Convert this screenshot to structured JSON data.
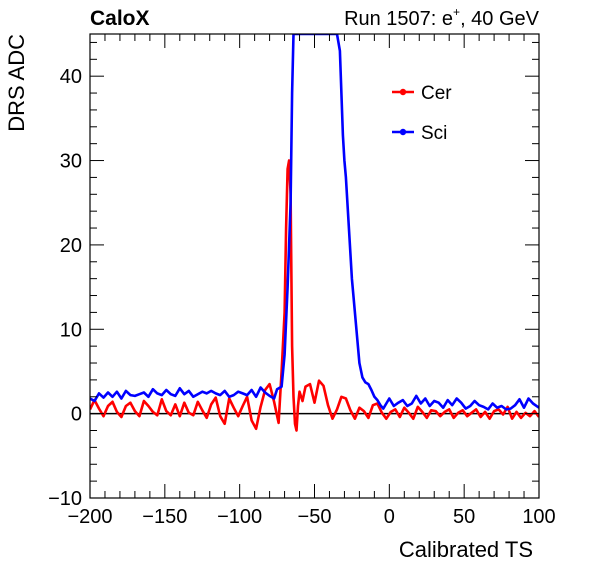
{
  "header": {
    "experiment": "CaloX",
    "run_prefix": "Run 1507: e",
    "run_superscript": "+",
    "run_suffix": ", 40 GeV"
  },
  "chart_data": {
    "type": "line",
    "title": "",
    "xlabel": "Calibrated TS",
    "ylabel": "DRS ADC",
    "xlim": [
      -200,
      100
    ],
    "ylim": [
      -10,
      45
    ],
    "x_ticks": [
      -200,
      -150,
      -100,
      -50,
      0,
      50,
      100
    ],
    "x_tick_labels": [
      "−200",
      "−150",
      "−100",
      "−50",
      "0",
      "50",
      "100"
    ],
    "y_ticks": [
      -10,
      0,
      10,
      20,
      30,
      40
    ],
    "y_tick_labels": [
      "−10",
      "0",
      "10",
      "20",
      "30",
      "40"
    ],
    "baseline_y": 0,
    "grid": false,
    "legend_position": "top-right",
    "series": [
      {
        "name": "Cer",
        "color": "#ff0000",
        "x": [
          -200,
          -197,
          -194,
          -191,
          -188,
          -185,
          -182,
          -179,
          -176,
          -173,
          -170,
          -167,
          -164,
          -161,
          -158,
          -155,
          -152,
          -149,
          -146,
          -143,
          -140,
          -137,
          -134,
          -131,
          -128,
          -125,
          -122,
          -119,
          -116,
          -113,
          -110,
          -107,
          -104,
          -101,
          -98,
          -95,
          -92,
          -89,
          -86,
          -83,
          -80,
          -77,
          -74,
          -72,
          -70,
          -69,
          -68,
          -67,
          -66,
          -65,
          -64,
          -63,
          -62,
          -61,
          -60,
          -58,
          -56,
          -53,
          -50,
          -47,
          -44,
          -41,
          -38,
          -35,
          -32,
          -29,
          -26,
          -23,
          -20,
          -17,
          -14,
          -11,
          -8,
          -5,
          -2,
          1,
          4,
          7,
          10,
          13,
          16,
          19,
          22,
          25,
          28,
          31,
          34,
          37,
          40,
          43,
          46,
          49,
          52,
          55,
          58,
          61,
          64,
          67,
          70,
          73,
          76,
          79,
          82,
          85,
          88,
          91,
          94,
          97,
          100
        ],
        "y": [
          0.5,
          1.6,
          0.6,
          -0.3,
          0.9,
          1.4,
          0.2,
          -0.4,
          0.9,
          1.3,
          0.3,
          -0.3,
          1.5,
          0.9,
          0.2,
          -0.2,
          1.7,
          0.3,
          -0.2,
          1.1,
          -0.3,
          1.3,
          0.1,
          -0.2,
          1.4,
          0.4,
          -0.5,
          1.1,
          1.9,
          -0.3,
          -1.2,
          1.8,
          0.7,
          -0.3,
          0.9,
          2.0,
          -0.8,
          -1.8,
          0.8,
          2.8,
          3.5,
          1.4,
          -1.1,
          5,
          12,
          22,
          29,
          30,
          26,
          8,
          2,
          -1.2,
          -2,
          0.9,
          2.6,
          1.5,
          3.2,
          3.5,
          1.3,
          3.9,
          3.3,
          1.0,
          -0.6,
          0.5,
          2.0,
          1.8,
          0.4,
          -0.6,
          0.7,
          0.3,
          -0.5,
          1.0,
          1.2,
          0.1,
          -0.6,
          0.2,
          0.5,
          -0.4,
          0.7,
          0.1,
          -0.6,
          0.8,
          0.2,
          -0.5,
          0.4,
          0.3,
          -0.3,
          0.2,
          0.5,
          -0.5,
          0.1,
          0.4,
          -0.3,
          0.1,
          0.5,
          -0.4,
          0.2,
          -0.6,
          0.3,
          0.5,
          -0.1,
          0.8,
          -0.6,
          0.2,
          -0.5,
          0.1,
          -0.3,
          0.3,
          -0.4
        ]
      },
      {
        "name": "Sci",
        "color": "#0000ff",
        "x": [
          -200,
          -197,
          -194,
          -191,
          -188,
          -185,
          -182,
          -179,
          -176,
          -173,
          -170,
          -167,
          -164,
          -161,
          -158,
          -155,
          -152,
          -149,
          -146,
          -143,
          -140,
          -137,
          -134,
          -131,
          -128,
          -125,
          -122,
          -119,
          -116,
          -113,
          -110,
          -107,
          -104,
          -101,
          -98,
          -95,
          -92,
          -89,
          -86,
          -83,
          -80,
          -77,
          -75,
          -72,
          -70,
          -68,
          -66,
          -65,
          -64,
          -63,
          -62,
          -61,
          -60,
          -58,
          -56,
          -53,
          -50,
          -47,
          -44,
          -41,
          -38,
          -35,
          -33,
          -32,
          -31,
          -30,
          -29,
          -28,
          -27,
          -26,
          -25,
          -24,
          -23,
          -22,
          -21,
          -20,
          -18,
          -16,
          -14,
          -12,
          -10,
          -8,
          -6,
          -4,
          -2,
          0,
          3,
          6,
          9,
          12,
          15,
          18,
          21,
          24,
          27,
          30,
          33,
          36,
          39,
          42,
          45,
          48,
          51,
          54,
          57,
          60,
          63,
          66,
          69,
          72,
          75,
          78,
          81,
          84,
          87,
          90,
          93,
          96,
          100
        ],
        "y": [
          1.8,
          1.5,
          2.4,
          1.9,
          2.5,
          2.0,
          2.6,
          1.8,
          2.7,
          2.2,
          2.1,
          2.3,
          2.5,
          2.0,
          2.9,
          2.4,
          2.2,
          2.8,
          2.3,
          2.1,
          3.0,
          2.3,
          2.7,
          2.0,
          2.3,
          2.6,
          2.4,
          2.7,
          2.4,
          2.2,
          2.7,
          2.0,
          2.2,
          2.6,
          2.4,
          2.2,
          2.8,
          2.0,
          3.1,
          2.5,
          2.1,
          1.8,
          2.9,
          3.2,
          7,
          15,
          25,
          38,
          45,
          45,
          45,
          45,
          45,
          45,
          45,
          45,
          45,
          45,
          45,
          45,
          45,
          45,
          43,
          38,
          33,
          30,
          28,
          25,
          22,
          19,
          16,
          14,
          12,
          10,
          8,
          6,
          4.3,
          3.7,
          3.5,
          2.8,
          2.0,
          1.6,
          1.0,
          0.6,
          1.2,
          1.8,
          0.9,
          1.3,
          1.6,
          0.9,
          1.2,
          2.1,
          1.2,
          1.8,
          0.9,
          1.5,
          1.3,
          0.7,
          1.6,
          1.0,
          1.8,
          1.3,
          0.6,
          0.9,
          1.5,
          1.0,
          0.8,
          0.5,
          1.2,
          0.7,
          0.9,
          0.5,
          0.6,
          1.0,
          1.7,
          0.7,
          1.8,
          1.2,
          0.7
        ]
      }
    ]
  }
}
